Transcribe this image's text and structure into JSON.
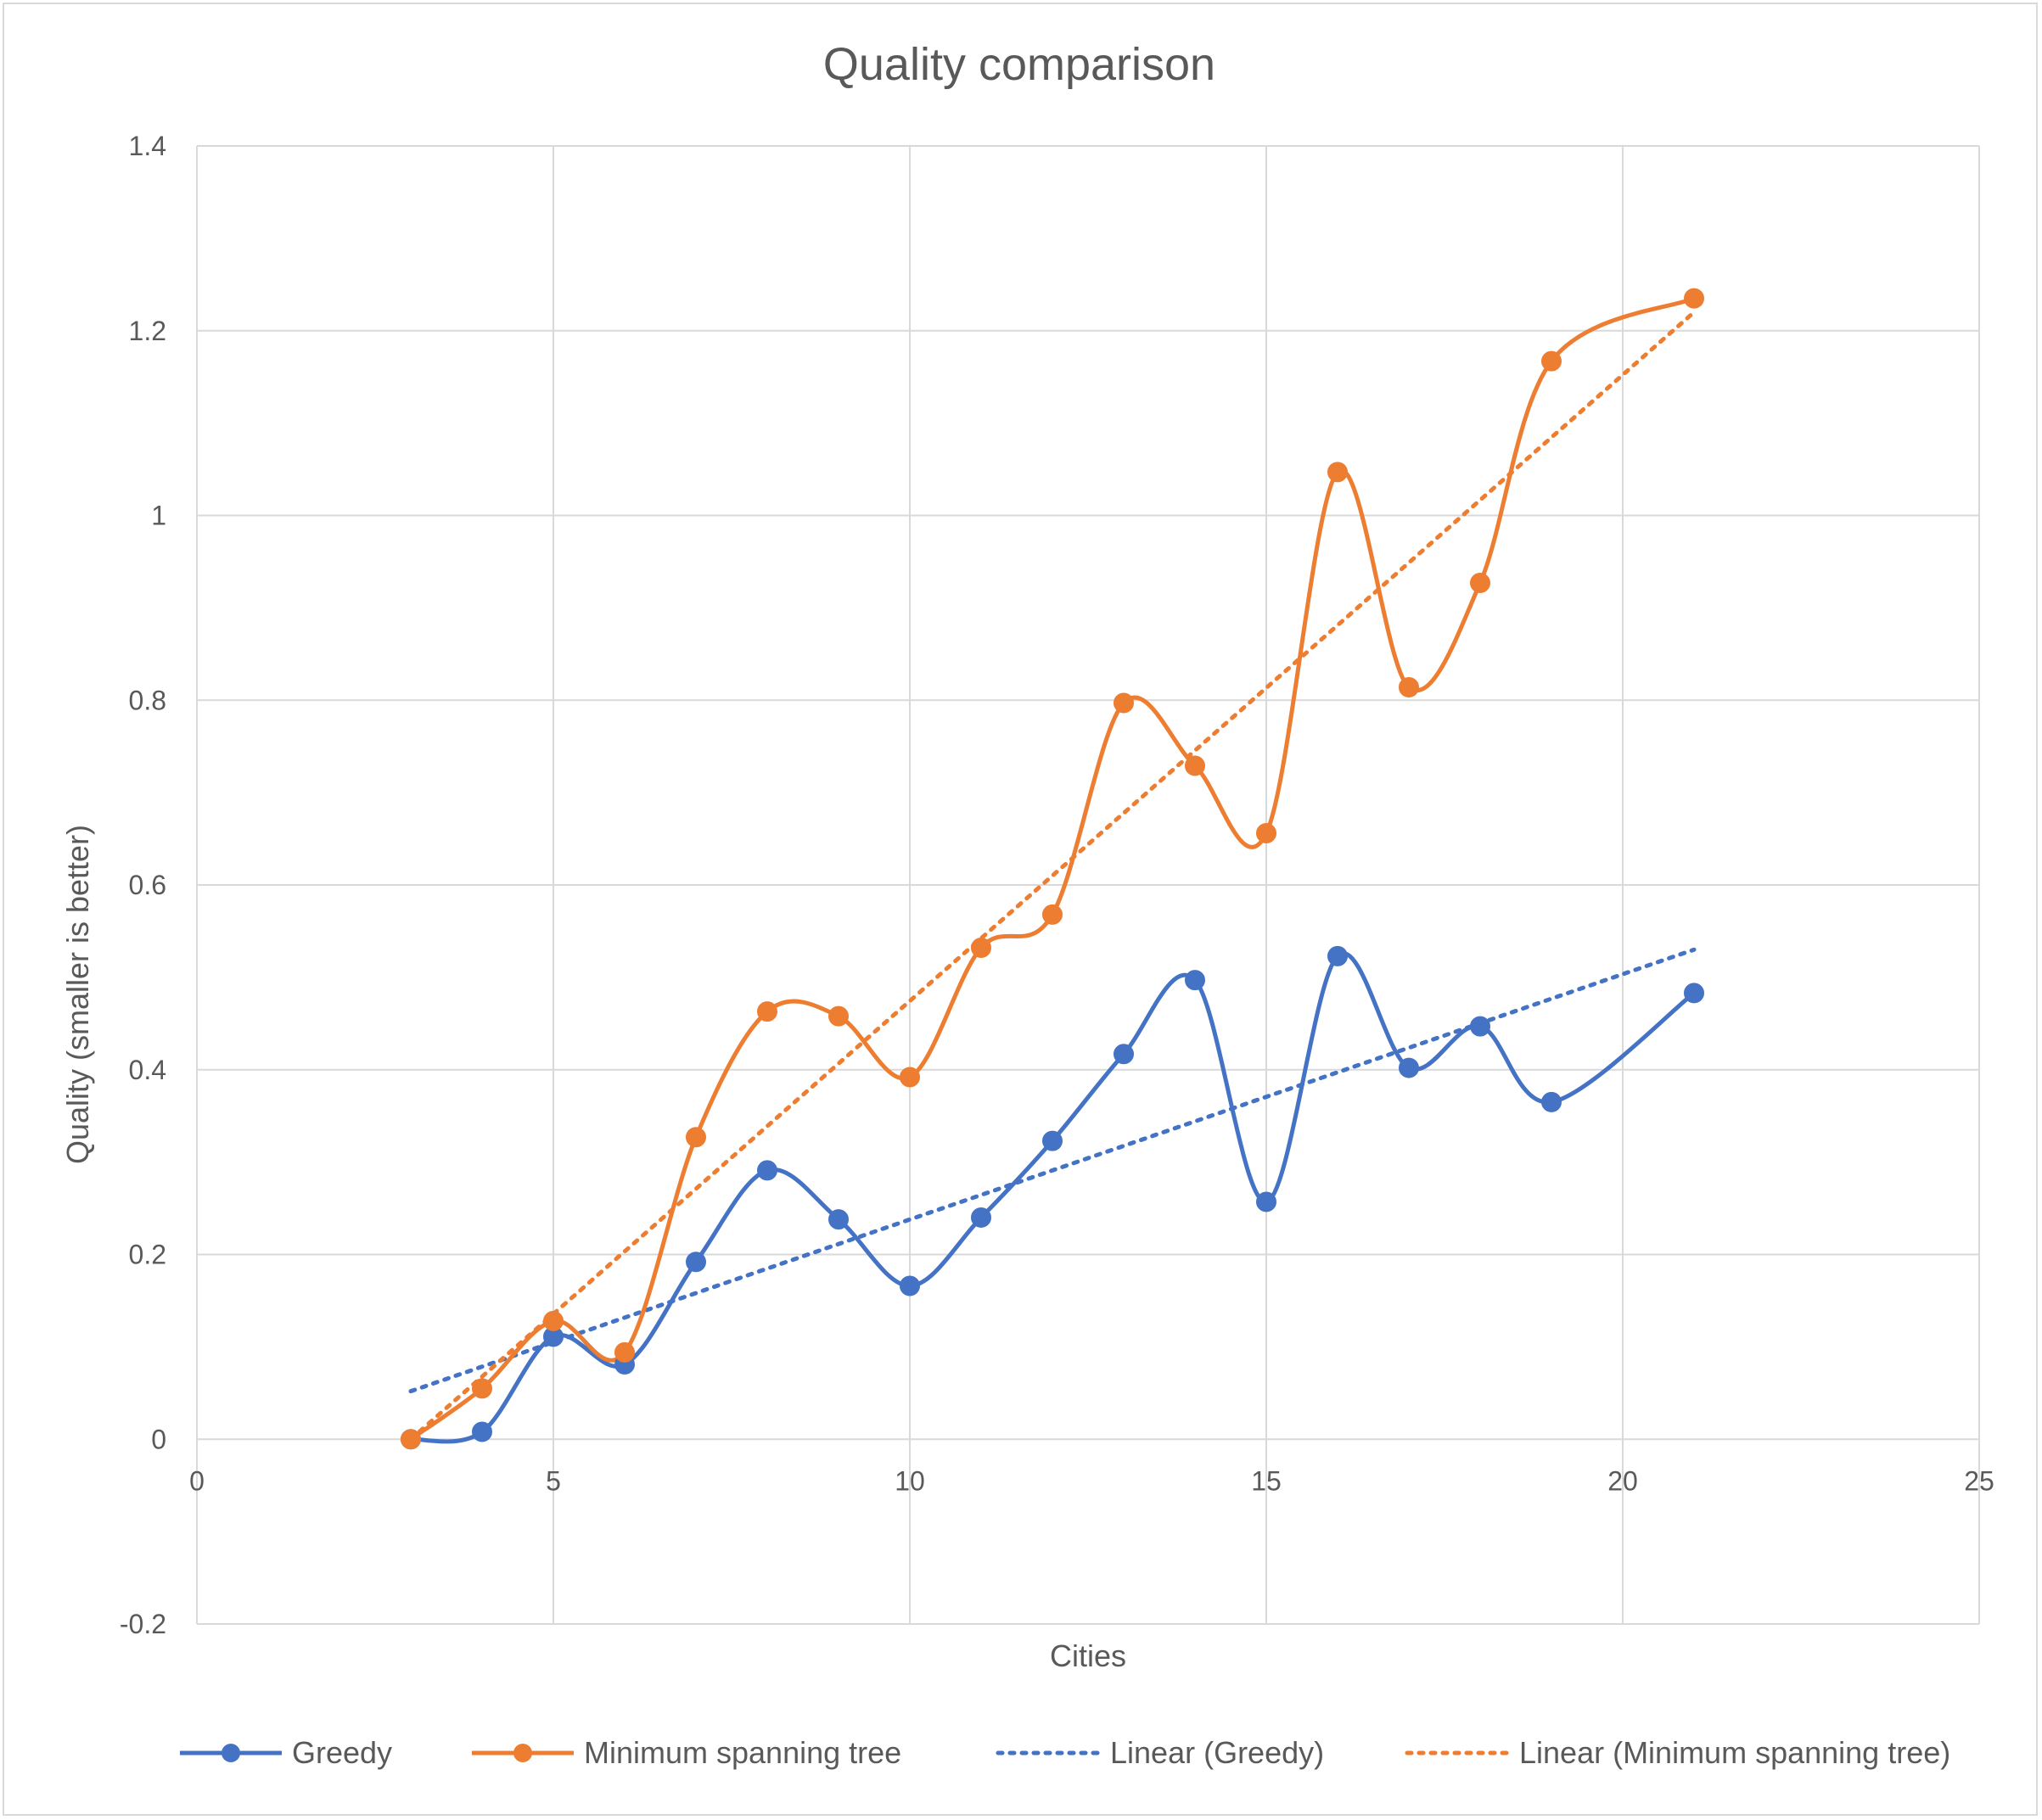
{
  "chart_data": {
    "type": "scatter",
    "title": "Quality comparison",
    "xlabel": "Cities",
    "ylabel": "Quality (smaller is better)",
    "xlim": [
      0,
      25
    ],
    "ylim": [
      -0.2,
      1.4
    ],
    "x_ticks": [
      0,
      5,
      10,
      15,
      20,
      25
    ],
    "y_ticks": [
      -0.2,
      0,
      0.2,
      0.4,
      0.6,
      0.8,
      1,
      1.2,
      1.4
    ],
    "grid": true,
    "legend_position": "bottom",
    "series": [
      {
        "name": "Greedy",
        "color": "#4472c4",
        "style": "smooth-line-markers",
        "x": [
          3,
          4,
          5,
          6,
          7,
          8,
          9,
          10,
          11,
          12,
          13,
          14,
          15,
          16,
          17,
          18,
          19,
          21
        ],
        "y": [
          0.0,
          0.008,
          0.111,
          0.081,
          0.192,
          0.291,
          0.238,
          0.166,
          0.24,
          0.323,
          0.417,
          0.497,
          0.257,
          0.523,
          0.402,
          0.447,
          0.365,
          0.483
        ]
      },
      {
        "name": "Minimum spanning tree",
        "color": "#ed7d31",
        "style": "smooth-line-markers",
        "x": [
          3,
          4,
          5,
          6,
          7,
          8,
          9,
          10,
          11,
          12,
          13,
          14,
          15,
          16,
          17,
          18,
          19,
          21
        ],
        "y": [
          0.0,
          0.055,
          0.128,
          0.094,
          0.327,
          0.463,
          0.458,
          0.392,
          0.532,
          0.568,
          0.797,
          0.729,
          0.656,
          1.047,
          0.814,
          0.927,
          1.167,
          1.235
        ]
      },
      {
        "name": "Linear (Greedy)",
        "color": "#4472c4",
        "style": "trendline-dotted",
        "x": [
          3,
          21
        ],
        "y": [
          0.052,
          0.53
        ]
      },
      {
        "name": "Linear (Minimum spanning tree)",
        "color": "#ed7d31",
        "style": "trendline-dotted",
        "x": [
          3,
          21
        ],
        "y": [
          0.0,
          1.22
        ]
      }
    ]
  }
}
